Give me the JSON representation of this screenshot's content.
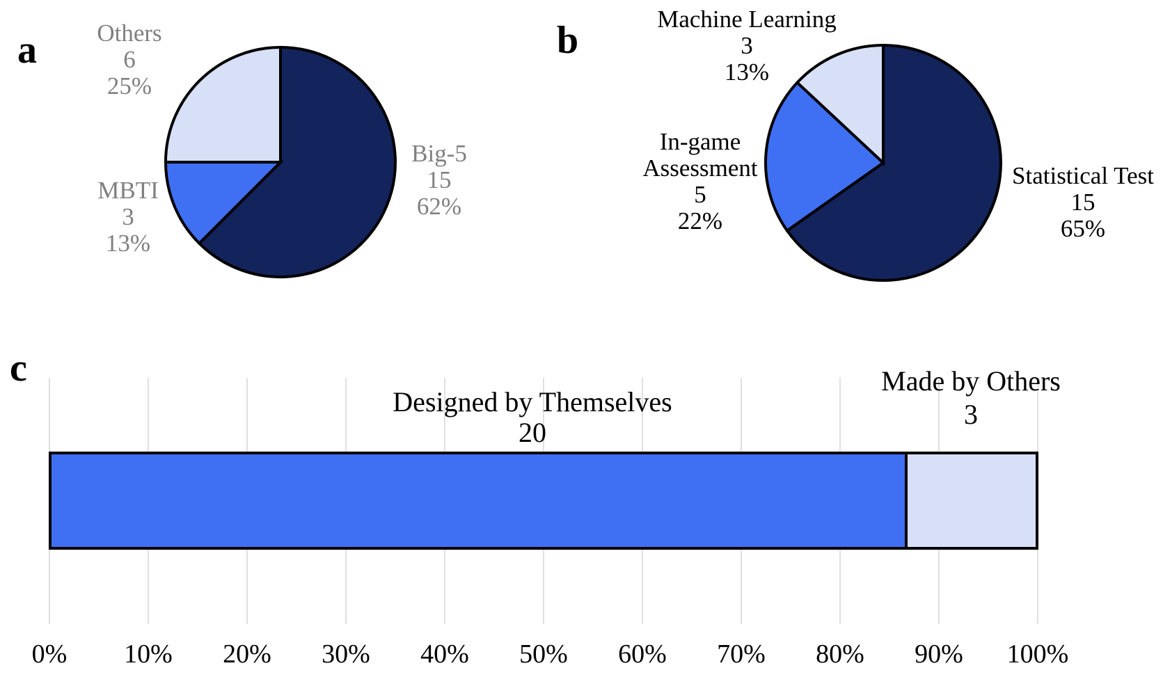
{
  "panels": {
    "a": "a",
    "b": "b",
    "c": "c"
  },
  "colors": {
    "navy": "#13235B",
    "royal_blue": "#3F6FF3",
    "light_blue": "#D8E0F8",
    "panel_a_label_color": "#808080",
    "panel_b_label_color": "#000000",
    "gridline": "#E0E0E0",
    "outline": "#000000"
  },
  "chart_data": [
    {
      "id": "a",
      "type": "pie",
      "start": "top",
      "direction": "clockwise",
      "label_color": "#808080",
      "slices": [
        {
          "label": "Big-5",
          "value": 15,
          "pct": "62%",
          "color": "#13235B"
        },
        {
          "label": "MBTI",
          "value": 3,
          "pct": "13%",
          "color": "#3F6FF3"
        },
        {
          "label": "Others",
          "value": 6,
          "pct": "25%",
          "color": "#D8E0F8"
        }
      ]
    },
    {
      "id": "b",
      "type": "pie",
      "start": "top",
      "direction": "clockwise",
      "label_color": "#000000",
      "slices": [
        {
          "label": "Statistical Test",
          "value": 15,
          "pct": "65%",
          "color": "#13235B"
        },
        {
          "label": "In-game Assessment",
          "value": 5,
          "pct": "22%",
          "color": "#3F6FF3"
        },
        {
          "label": "Machine Learning",
          "value": 3,
          "pct": "13%",
          "color": "#D8E0F8"
        }
      ]
    },
    {
      "id": "c",
      "type": "stacked_bar",
      "orientation": "horizontal",
      "xlim": [
        0,
        100
      ],
      "grid": true,
      "x_ticks": [
        "0%",
        "10%",
        "20%",
        "30%",
        "40%",
        "50%",
        "60%",
        "70%",
        "80%",
        "90%",
        "100%"
      ],
      "segments": [
        {
          "label": "Designed by Themselves",
          "value": 20,
          "color": "#3F6FF3"
        },
        {
          "label": "Made by Others",
          "value": 3,
          "color": "#D8E0F8"
        }
      ]
    }
  ]
}
